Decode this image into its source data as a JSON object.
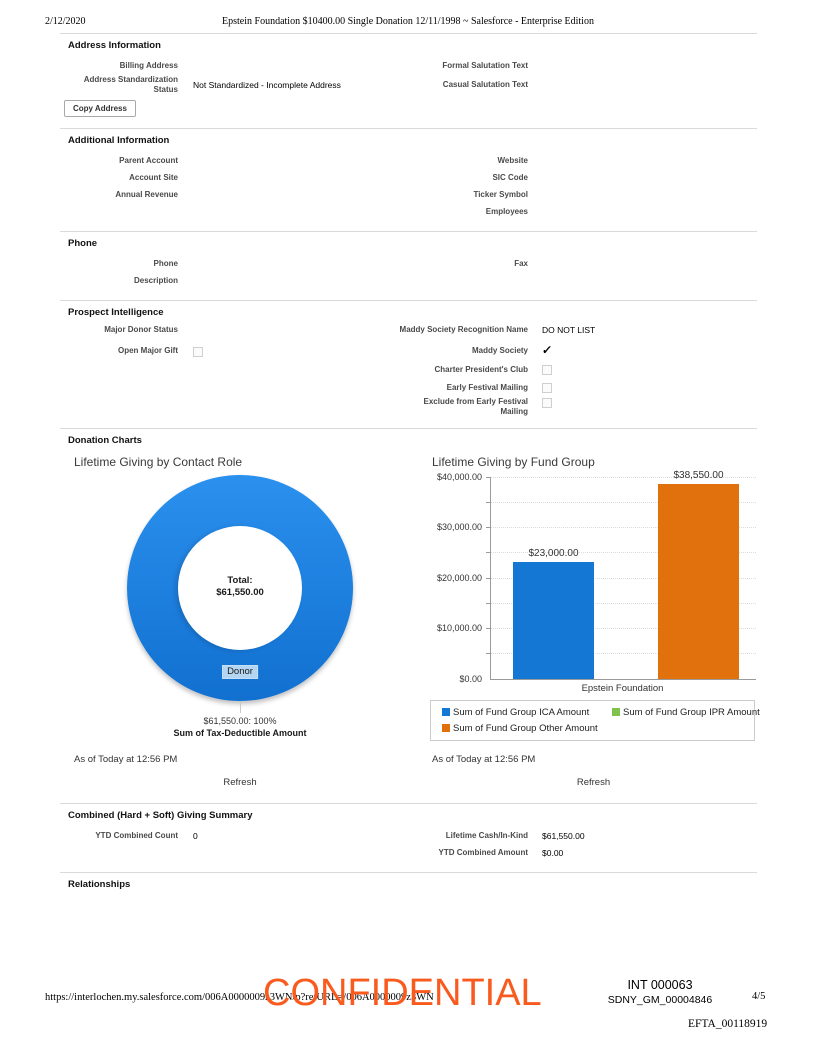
{
  "page_header": {
    "date": "2/12/2020",
    "title": "Epstein Foundation $10400.00 Single Donation 12/11/1998 ~ Salesforce - Enterprise Edition"
  },
  "address": {
    "title": "Address Information",
    "billing_address_label": "Billing Address",
    "formal_salutation_label": "Formal Salutation Text",
    "standardization_label": "Address Standardization Status",
    "standardization_value": "Not Standardized - Incomplete Address",
    "casual_salutation_label": "Casual Salutation Text",
    "copy_address_button": "Copy Address"
  },
  "additional": {
    "title": "Additional Information",
    "parent_account_label": "Parent Account",
    "website_label": "Website",
    "account_site_label": "Account Site",
    "sic_code_label": "SIC Code",
    "annual_revenue_label": "Annual Revenue",
    "ticker_symbol_label": "Ticker Symbol",
    "employees_label": "Employees"
  },
  "phone": {
    "title": "Phone",
    "phone_label": "Phone",
    "fax_label": "Fax",
    "description_label": "Description"
  },
  "prospect": {
    "title": "Prospect Intelligence",
    "major_donor_status_label": "Major Donor Status",
    "open_major_gift_label": "Open Major Gift",
    "recognition_name_label": "Maddy Society Recognition Name",
    "recognition_name_value": "DO NOT LIST",
    "maddy_society_label": "Maddy Society",
    "checkmark": "✓",
    "charter_club_label": "Charter President's Club",
    "early_festival_label": "Early Festival Mailing",
    "exclude_festival_label": "Exclude from Early Festival Mailing"
  },
  "donation_charts": {
    "title": "Donation Charts"
  },
  "chart_data": [
    {
      "type": "pie",
      "donut": true,
      "title": "Lifetime Giving by Contact Role",
      "slices": [
        {
          "label": "Donor",
          "value": 61550.0,
          "percent": 100,
          "color": "#1b7fe0"
        }
      ],
      "center_label": "Total:",
      "center_value": "$61,550.00",
      "caption_value": "$61,550.00: 100%",
      "caption_label": "Sum of Tax-Deductible Amount",
      "as_of": "As of Today at 12:56 PM",
      "refresh_label": "Refresh"
    },
    {
      "type": "bar",
      "title": "Lifetime Giving by Fund Group",
      "categories": [
        "Epstein Foundation"
      ],
      "series": [
        {
          "name": "Sum of Fund Group ICA Amount",
          "values": [
            23000
          ],
          "color": "#1577d4",
          "value_label": "$23,000.00"
        },
        {
          "name": "Sum of Fund Group IPR Amount",
          "values": [
            0
          ],
          "color": "#7fc24d",
          "value_label": ""
        },
        {
          "name": "Sum of Fund Group Other Amount",
          "values": [
            38550
          ],
          "color": "#e0710d",
          "value_label": "$38,550.00"
        }
      ],
      "ylim": [
        0,
        40000
      ],
      "ytick_step": 5000,
      "yticks": [
        "$40,000.00",
        "$30,000.00",
        "$20,000.00",
        "$10,000.00",
        "$0.00"
      ],
      "grid": true,
      "legend_position": "bottom",
      "as_of": "As of Today at 12:56 PM",
      "refresh_label": "Refresh"
    }
  ],
  "giving_summary": {
    "title": "Combined (Hard + Soft) Giving Summary",
    "ytd_count_label": "YTD Combined Count",
    "ytd_count_value": "0",
    "lifetime_cash_label": "Lifetime Cash/In-Kind",
    "lifetime_cash_value": "$61,550.00",
    "ytd_amount_label": "YTD Combined Amount",
    "ytd_amount_value": "$0.00"
  },
  "relationships": {
    "title": "Relationships"
  },
  "footer": {
    "url": "https://interlochen.my.salesforce.com/006A0000009z3WN/p?retURL=/006A0000009z3WN",
    "watermark": "CONFIDENTIAL",
    "watermark_color": "#f95b1e",
    "bates_int": "INT 000063",
    "bates_sdny": "SDNY_GM_00004846",
    "page_number": "4/5",
    "bates_efta": "EFTA_00118919"
  }
}
